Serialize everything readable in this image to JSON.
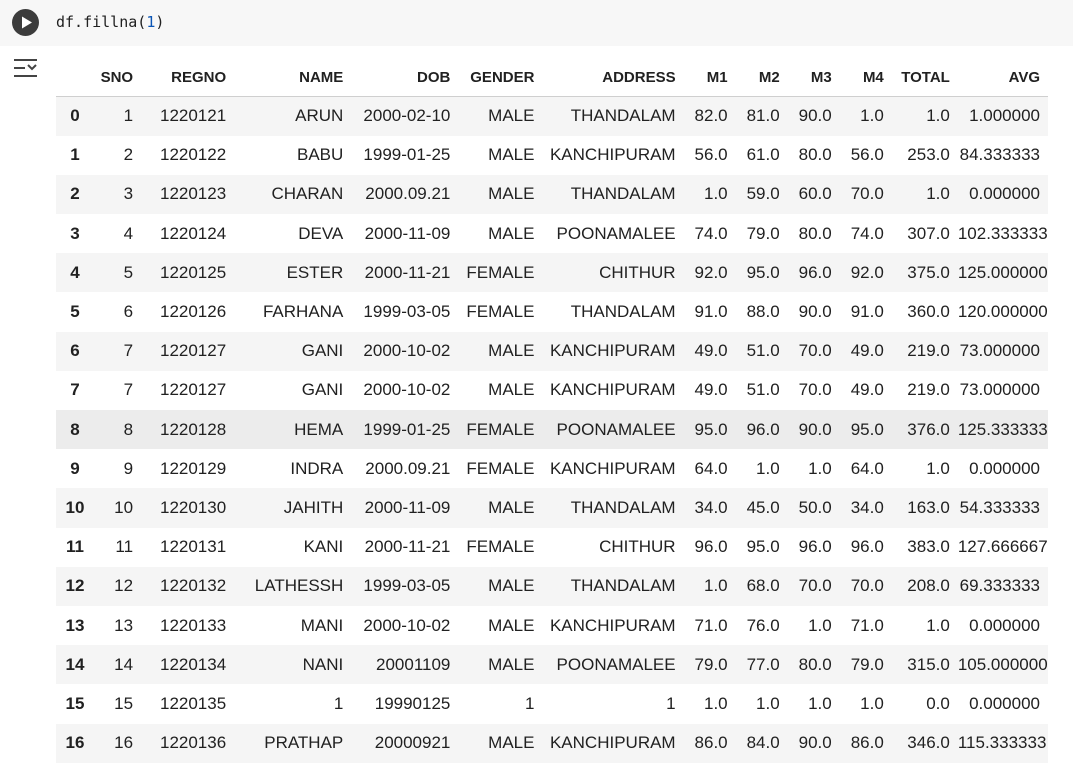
{
  "code": {
    "prefix": "df.fillna(",
    "arg": "1",
    "suffix": ")"
  },
  "icons": {
    "run": "play-circle-icon",
    "output": "output-toggle-icon"
  },
  "table": {
    "columns": [
      "",
      "SNO",
      "REGNO",
      "NAME",
      "DOB",
      "GENDER",
      "ADDRESS",
      "M1",
      "M2",
      "M3",
      "M4",
      "TOTAL",
      "AVG"
    ],
    "rows": [
      [
        "0",
        "1",
        "1220121",
        "ARUN",
        "2000-02-10",
        "MALE",
        "THANDALAM",
        "82.0",
        "81.0",
        "90.0",
        "1.0",
        "1.0",
        "1.000000"
      ],
      [
        "1",
        "2",
        "1220122",
        "BABU",
        "1999-01-25",
        "MALE",
        "KANCHIPURAM",
        "56.0",
        "61.0",
        "80.0",
        "56.0",
        "253.0",
        "84.333333"
      ],
      [
        "2",
        "3",
        "1220123",
        "CHARAN",
        "2000.09.21",
        "MALE",
        "THANDALAM",
        "1.0",
        "59.0",
        "60.0",
        "70.0",
        "1.0",
        "0.000000"
      ],
      [
        "3",
        "4",
        "1220124",
        "DEVA",
        "2000-11-09",
        "MALE",
        "POONAMALEE",
        "74.0",
        "79.0",
        "80.0",
        "74.0",
        "307.0",
        "102.333333"
      ],
      [
        "4",
        "5",
        "1220125",
        "ESTER",
        "2000-11-21",
        "FEMALE",
        "CHITHUR",
        "92.0",
        "95.0",
        "96.0",
        "92.0",
        "375.0",
        "125.000000"
      ],
      [
        "5",
        "6",
        "1220126",
        "FARHANA",
        "1999-03-05",
        "FEMALE",
        "THANDALAM",
        "91.0",
        "88.0",
        "90.0",
        "91.0",
        "360.0",
        "120.000000"
      ],
      [
        "6",
        "7",
        "1220127",
        "GANI",
        "2000-10-02",
        "MALE",
        "KANCHIPURAM",
        "49.0",
        "51.0",
        "70.0",
        "49.0",
        "219.0",
        "73.000000"
      ],
      [
        "7",
        "7",
        "1220127",
        "GANI",
        "2000-10-02",
        "MALE",
        "KANCHIPURAM",
        "49.0",
        "51.0",
        "70.0",
        "49.0",
        "219.0",
        "73.000000"
      ],
      [
        "8",
        "8",
        "1220128",
        "HEMA",
        "1999-01-25",
        "FEMALE",
        "POONAMALEE",
        "95.0",
        "96.0",
        "90.0",
        "95.0",
        "376.0",
        "125.333333"
      ],
      [
        "9",
        "9",
        "1220129",
        "INDRA",
        "2000.09.21",
        "FEMALE",
        "KANCHIPURAM",
        "64.0",
        "1.0",
        "1.0",
        "64.0",
        "1.0",
        "0.000000"
      ],
      [
        "10",
        "10",
        "1220130",
        "JAHITH",
        "2000-11-09",
        "MALE",
        "THANDALAM",
        "34.0",
        "45.0",
        "50.0",
        "34.0",
        "163.0",
        "54.333333"
      ],
      [
        "11",
        "11",
        "1220131",
        "KANI",
        "2000-11-21",
        "FEMALE",
        "CHITHUR",
        "96.0",
        "95.0",
        "96.0",
        "96.0",
        "383.0",
        "127.666667"
      ],
      [
        "12",
        "12",
        "1220132",
        "LATHESSH",
        "1999-03-05",
        "MALE",
        "THANDALAM",
        "1.0",
        "68.0",
        "70.0",
        "70.0",
        "208.0",
        "69.333333"
      ],
      [
        "13",
        "13",
        "1220133",
        "MANI",
        "2000-10-02",
        "MALE",
        "KANCHIPURAM",
        "71.0",
        "76.0",
        "1.0",
        "71.0",
        "1.0",
        "0.000000"
      ],
      [
        "14",
        "14",
        "1220134",
        "NANI",
        "20001109",
        "MALE",
        "POONAMALEE",
        "79.0",
        "77.0",
        "80.0",
        "79.0",
        "315.0",
        "105.000000"
      ],
      [
        "15",
        "15",
        "1220135",
        "1",
        "19990125",
        "1",
        "1",
        "1.0",
        "1.0",
        "1.0",
        "1.0",
        "0.0",
        "0.000000"
      ],
      [
        "16",
        "16",
        "1220136",
        "PRATHAP",
        "20000921",
        "MALE",
        "KANCHIPURAM",
        "86.0",
        "84.0",
        "90.0",
        "86.0",
        "346.0",
        "115.333333"
      ]
    ]
  }
}
